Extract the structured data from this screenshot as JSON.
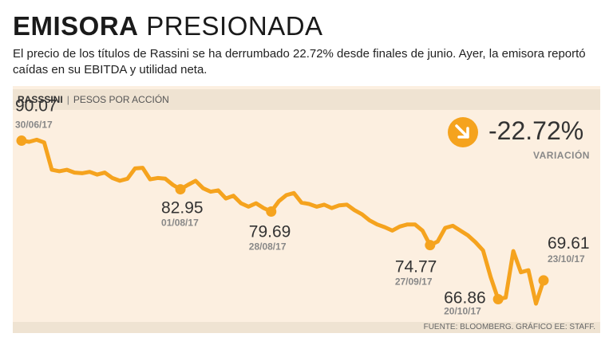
{
  "header": {
    "title_bold": "EMISORA",
    "title_light": "PRESIONADA",
    "subtitle": "El precio de los títulos de Rassini se ha derrumbado 22.72% desde finales de junio. Ayer, la emisora reportó caídas en su EBITDA y utilidad neta."
  },
  "band": {
    "company": "RASSSINI",
    "separator": "|",
    "units": "PESOS POR ACCIÓN"
  },
  "variation": {
    "value": "-22.72%",
    "label": "VARIACIÓN",
    "icon": "arrow-down-right-icon"
  },
  "source": "FUENTE: BLOOMBERG. GRÁFICO EE: STAFF.",
  "colors": {
    "line": "#f5a31e",
    "panel": "#fcefe0",
    "band": "#efe3d2"
  },
  "chart_data": {
    "type": "line",
    "ylabel": "PESOS POR ACCIÓN",
    "ylim": [
      64,
      92
    ],
    "series": [
      {
        "name": "RASSSINI",
        "values": [
          90.07,
          89.9,
          90.2,
          89.8,
          85.8,
          85.6,
          85.8,
          85.4,
          85.3,
          85.5,
          85.1,
          85.4,
          84.6,
          84.2,
          84.5,
          86.0,
          86.1,
          84.4,
          84.6,
          84.5,
          83.6,
          82.95,
          83.6,
          84.2,
          83.1,
          82.6,
          82.8,
          81.6,
          82.0,
          80.9,
          80.4,
          80.9,
          80.2,
          79.69,
          81.2,
          82.1,
          82.4,
          81.0,
          80.8,
          80.4,
          80.7,
          80.2,
          80.6,
          80.7,
          79.9,
          79.3,
          78.4,
          77.8,
          77.4,
          76.9,
          77.5,
          77.8,
          77.8,
          76.9,
          74.77,
          75.3,
          77.3,
          77.6,
          76.9,
          76.2,
          75.2,
          74.0,
          70.1,
          66.86,
          67.1,
          73.9,
          70.8,
          71.1,
          66.2,
          69.61
        ]
      }
    ],
    "annotations": [
      {
        "index": 0,
        "value": "90.07",
        "date": "30/06/17"
      },
      {
        "index": 21,
        "value": "82.95",
        "date": "01/08/17"
      },
      {
        "index": 33,
        "value": "79.69",
        "date": "28/08/17"
      },
      {
        "index": 54,
        "value": "74.77",
        "date": "27/09/17"
      },
      {
        "index": 63,
        "value": "66.86",
        "date": "20/10/17"
      },
      {
        "index": 69,
        "value": "69.61",
        "date": "23/10/17"
      }
    ]
  }
}
